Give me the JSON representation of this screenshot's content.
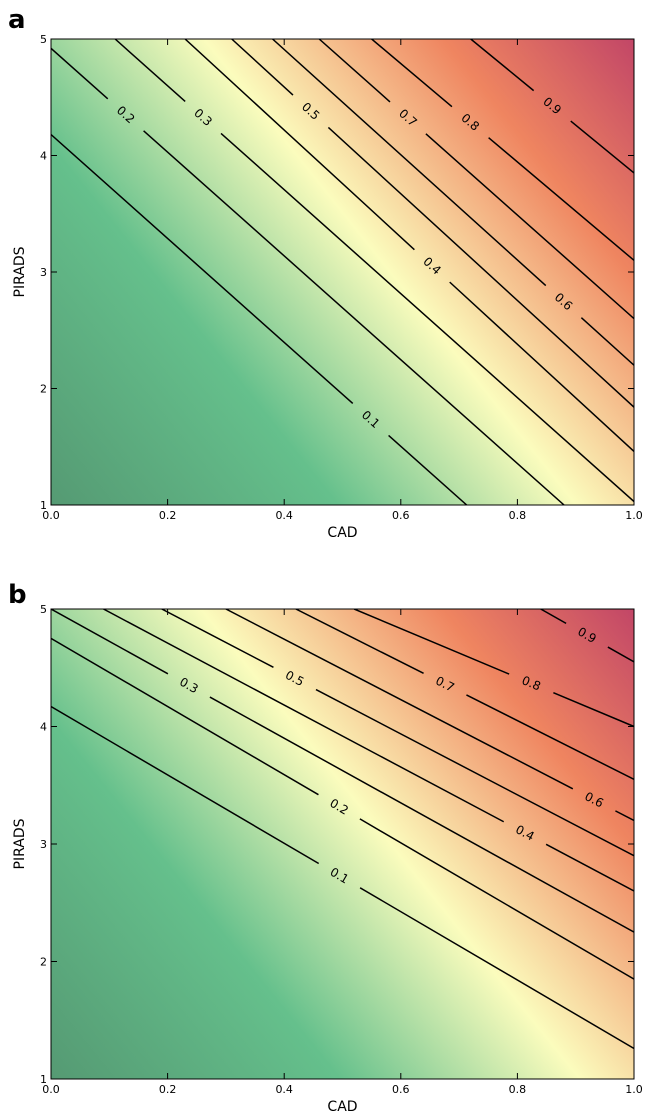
{
  "chart_data": [
    {
      "panel": "a",
      "type": "heatmap",
      "xlabel": "CAD",
      "ylabel": "PIRADS",
      "xlim": [
        0.0,
        1.0
      ],
      "ylim": [
        1,
        5
      ],
      "xticks": [
        "0.0",
        "0.2",
        "0.4",
        "0.6",
        "0.8",
        "1.0"
      ],
      "yticks": [
        "1",
        "2",
        "3",
        "4",
        "5"
      ],
      "colormap": [
        "#559a73",
        "#65c08c",
        "#fbfcbd",
        "#ef8560",
        "#c24667"
      ],
      "contours": [
        {
          "level": "0.1",
          "x0": 0.0,
          "y0": 4.18,
          "x1": 0.713,
          "y1": 1.0,
          "label_x": 0.56,
          "label_y": 1.8
        },
        {
          "level": "0.2",
          "x0": 0.0,
          "y0": 4.92,
          "x1": 0.88,
          "y1": 1.0,
          "label_x": 0.13,
          "label_y": 4.36
        },
        {
          "level": "0.3",
          "x0": 0.11,
          "y0": 5.0,
          "x1": 1.0,
          "y1": 1.03,
          "label_x": 0.265,
          "label_y": 4.35
        },
        {
          "level": "0.4",
          "x0": 0.23,
          "y0": 5.0,
          "x1": 1.0,
          "y1": 1.46,
          "label_x": 0.655,
          "label_y": 3.06
        },
        {
          "level": "0.5",
          "x0": 0.31,
          "y0": 5.0,
          "x1": 1.0,
          "y1": 1.84,
          "label_x": 0.44,
          "label_y": 4.35
        },
        {
          "level": "0.6",
          "x0": 0.38,
          "y0": 5.0,
          "x1": 1.0,
          "y1": 2.2,
          "label_x": 0.88,
          "label_y": 2.75
        },
        {
          "level": "0.7",
          "x0": 0.46,
          "y0": 5.0,
          "x1": 1.0,
          "y1": 2.6,
          "label_x": 0.617,
          "label_y": 4.35
        },
        {
          "level": "0.8",
          "x0": 0.55,
          "y0": 5.0,
          "x1": 1.0,
          "y1": 3.1,
          "label_x": 0.73,
          "label_y": 4.35
        },
        {
          "level": "0.9",
          "x0": 0.72,
          "y0": 5.0,
          "x1": 1.0,
          "y1": 3.85,
          "label_x": 0.88,
          "label_y": 4.55
        }
      ]
    },
    {
      "panel": "b",
      "type": "heatmap",
      "xlabel": "CAD",
      "ylabel": "PIRADS",
      "xlim": [
        0.0,
        1.0
      ],
      "ylim": [
        1,
        5
      ],
      "xticks": [
        "0.0",
        "0.2",
        "0.4",
        "0.6",
        "0.8",
        "1.0"
      ],
      "yticks": [
        "1",
        "2",
        "3",
        "4",
        "5"
      ],
      "colormap": [
        "#559a73",
        "#65c08c",
        "#fbfcbd",
        "#ef8560",
        "#c24667"
      ],
      "contours": [
        {
          "level": "0.1",
          "x0": 0.0,
          "y0": 4.17,
          "x1": 1.0,
          "y1": 1.26,
          "label_x": 0.51,
          "label_y": 2.86
        },
        {
          "level": "0.2",
          "x0": 0.0,
          "y0": 4.75,
          "x1": 1.0,
          "y1": 1.85,
          "label_x": 0.51,
          "label_y": 3.45
        },
        {
          "level": "0.3",
          "x0": 0.0,
          "y0": 5.0,
          "x1": 1.0,
          "y1": 2.25,
          "label_x": 0.25,
          "label_y": 4.47
        },
        {
          "level": "0.4",
          "x0": 0.09,
          "y0": 5.0,
          "x1": 1.0,
          "y1": 2.6,
          "label_x": 0.835,
          "label_y": 3.3
        },
        {
          "level": "0.5",
          "x0": 0.19,
          "y0": 5.0,
          "x1": 1.0,
          "y1": 2.9,
          "label_x": 0.435,
          "label_y": 4.57
        },
        {
          "level": "0.6",
          "x0": 0.3,
          "y0": 5.0,
          "x1": 1.0,
          "y1": 3.2,
          "label_x": 0.955,
          "label_y": 3.6
        },
        {
          "level": "0.7",
          "x0": 0.42,
          "y0": 5.0,
          "x1": 1.0,
          "y1": 3.55,
          "label_x": 0.69,
          "label_y": 4.5
        },
        {
          "level": "0.8",
          "x0": 0.52,
          "y0": 5.0,
          "x1": 1.0,
          "y1": 4.0,
          "label_x": 0.835,
          "label_y": 4.5
        },
        {
          "level": "0.9",
          "x0": 0.84,
          "y0": 5.0,
          "x1": 1.0,
          "y1": 4.55,
          "label_x": 0.93,
          "label_y": 4.87
        }
      ]
    }
  ]
}
